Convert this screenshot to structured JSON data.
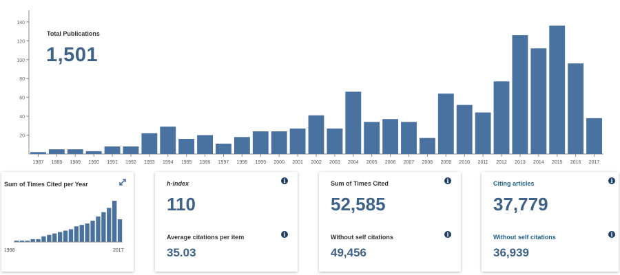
{
  "summary": {
    "total_label": "Total Publications",
    "total_value": "1,501"
  },
  "chart_data": [
    {
      "type": "bar",
      "title": "Total Publications",
      "categories": [
        "1987",
        "1988",
        "1989",
        "1990",
        "1991",
        "1992",
        "1993",
        "1994",
        "1995",
        "1996",
        "1997",
        "1998",
        "1999",
        "2000",
        "2001",
        "2002",
        "2003",
        "2004",
        "2005",
        "2006",
        "2007",
        "2008",
        "2009",
        "2010",
        "2011",
        "2012",
        "2013",
        "2014",
        "2015",
        "2016",
        "2017"
      ],
      "values": [
        2,
        5,
        5,
        3,
        8,
        8,
        22,
        29,
        16,
        20,
        11,
        18,
        24,
        24,
        27,
        41,
        27,
        66,
        34,
        37,
        34,
        17,
        64,
        52,
        44,
        77,
        126,
        112,
        136,
        96,
        38
      ],
      "yticks": [
        20,
        40,
        60,
        80,
        100,
        120,
        140
      ],
      "ylim": [
        0,
        145
      ],
      "color": "#4a72a0"
    },
    {
      "type": "bar",
      "title": "Sum of Times Cited per Year",
      "x_start_label": "1998",
      "x_end_label": "2017",
      "values": [
        1,
        1,
        1,
        2,
        2,
        4,
        5,
        6,
        7,
        8,
        9,
        11,
        12,
        13,
        15,
        18,
        21,
        24,
        29,
        16
      ],
      "ylim": [
        0,
        30
      ],
      "color": "#4a72a0"
    }
  ],
  "cards": {
    "times_cited_card": {
      "title": "Sum of Times Cited per Year"
    },
    "hindex": {
      "label": "h-index",
      "value": "110",
      "avg_label": "Average citations per item",
      "avg_value": "35.03"
    },
    "sum_cited": {
      "label": "Sum of Times Cited",
      "value": "52,585",
      "without_label": "Without self citations",
      "without_value": "49,456"
    },
    "citing": {
      "label": "Citing articles",
      "value": "37,779",
      "without_label": "Without self citations",
      "without_value": "36,939"
    }
  },
  "icons": {
    "info": "info-icon",
    "expand": "expand-icon"
  },
  "info_glyph": "i"
}
